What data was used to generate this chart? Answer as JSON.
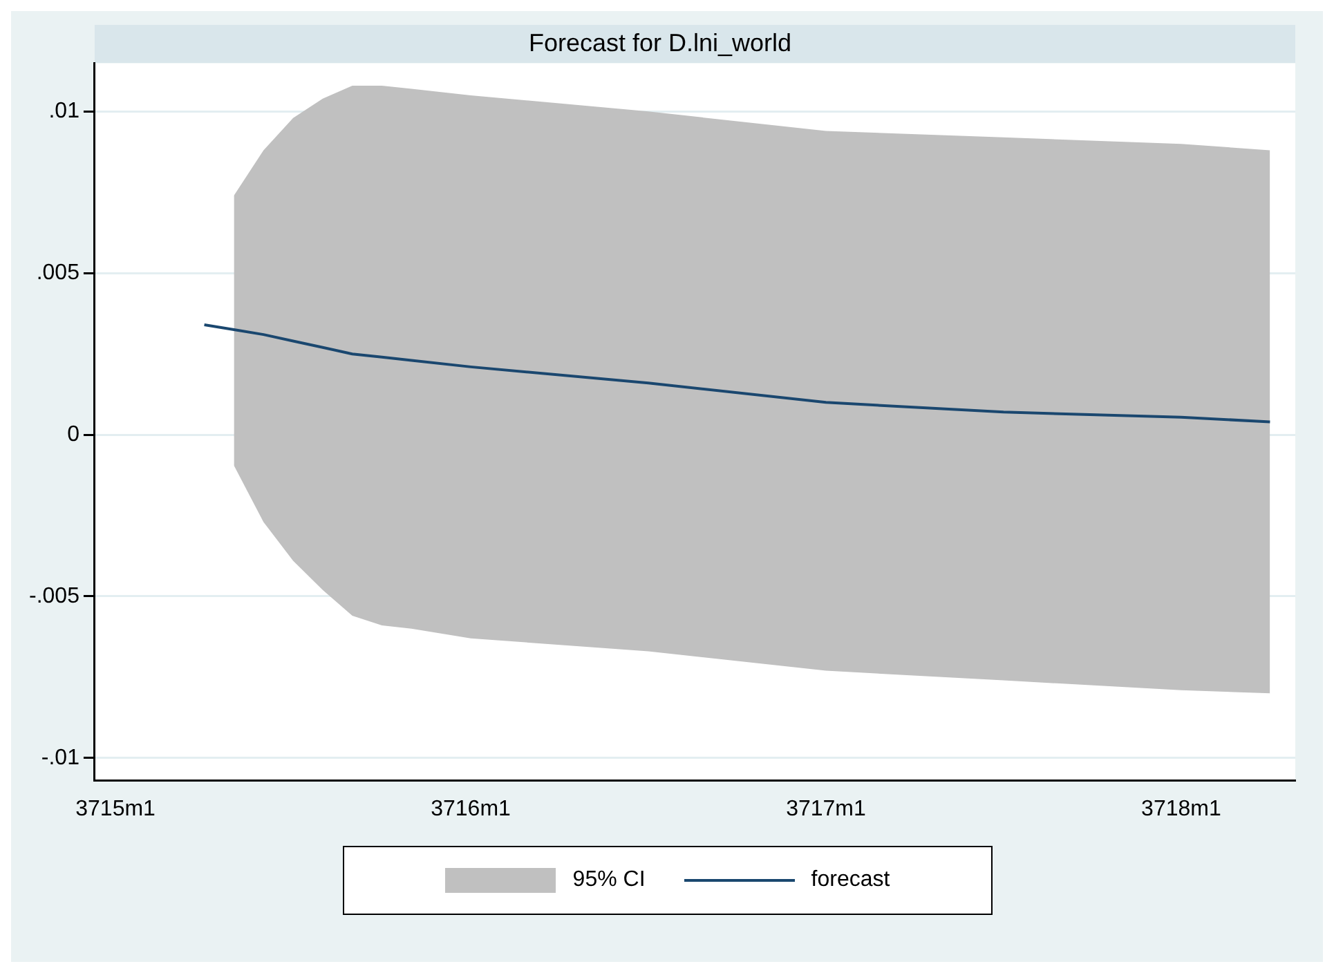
{
  "chart_data": {
    "type": "line",
    "title": "Forecast for D.lni_world",
    "series": [
      {
        "name": "forecast",
        "type": "line",
        "color": "#1a476f",
        "x": [
          "3715-04",
          "3715-05",
          "3715-06",
          "3715-07",
          "3715-08",
          "3715-09",
          "3715-10",
          "3715-11",
          "3716-01",
          "3716-07",
          "3717-01",
          "3717-07",
          "3718-01",
          "3718-04"
        ],
        "values": [
          0.0034,
          0.00325,
          0.0031,
          0.0029,
          0.0027,
          0.0025,
          0.0024,
          0.0023,
          0.0021,
          0.0016,
          0.001,
          0.0007,
          0.00054,
          0.0004
        ],
        "lower": [
          null,
          -0.00095,
          -0.0027,
          -0.0039,
          -0.0048,
          -0.0056,
          -0.0059,
          -0.006,
          -0.0063,
          -0.0067,
          -0.0073,
          -0.0076,
          -0.0079,
          -0.008
        ],
        "upper": [
          null,
          0.0074,
          0.0088,
          0.0098,
          0.0104,
          0.0108,
          0.0108,
          0.0107,
          0.0105,
          0.01,
          0.0094,
          0.0092,
          0.009,
          0.0088
        ]
      }
    ],
    "annotations": [
      "95% CI"
    ],
    "xlim": [
      "3714-12-10",
      "3718-04-27"
    ],
    "xticks": [
      {
        "value": "3715-01",
        "label": "3715m1"
      },
      {
        "value": "3716-01",
        "label": "3716m1"
      },
      {
        "value": "3717-01",
        "label": "3717m1"
      },
      {
        "value": "3718-01",
        "label": "3718m1"
      }
    ],
    "ylim": [
      -0.0107,
      0.0115
    ],
    "yticks": [
      {
        "value": -0.01,
        "label": "-.01"
      },
      {
        "value": -0.005,
        "label": "-.005"
      },
      {
        "value": 0,
        "label": "0"
      },
      {
        "value": 0.005,
        "label": ".005"
      },
      {
        "value": 0.01,
        "label": ".01"
      }
    ],
    "grid": "y",
    "legend": "bottom"
  }
}
